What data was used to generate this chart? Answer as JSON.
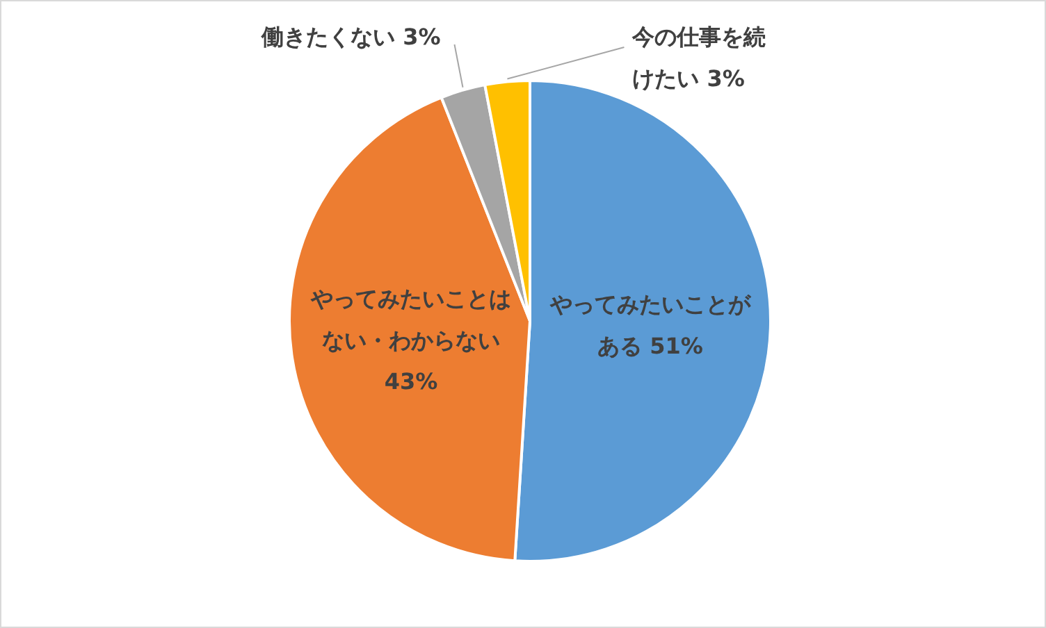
{
  "chart_data": {
    "type": "pie",
    "categories": [
      "やってみたいことがある",
      "やってみたいことはない・わからない",
      "働きたくない",
      "今の仕事を続けたい"
    ],
    "values": [
      51,
      43,
      3,
      3
    ],
    "colors": [
      "#5b9bd5",
      "#ed7d31",
      "#a5a5a5",
      "#ffc000"
    ],
    "value_labels": [
      "51%",
      "43%",
      "3%",
      "3%"
    ],
    "legend": false
  }
}
